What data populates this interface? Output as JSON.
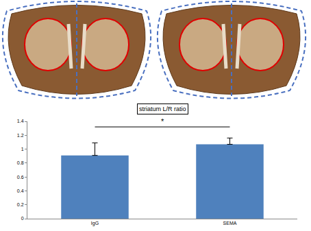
{
  "chart_data": {
    "type": "bar",
    "title": "striatum L/R ratio",
    "categories": [
      "IgG",
      "SEMA"
    ],
    "values": [
      0.91,
      1.07
    ],
    "error": [
      0.18,
      0.09
    ],
    "color": "#4f81bd",
    "ylim": [
      0,
      1.4
    ],
    "yticks": [
      0,
      0.2,
      0.4,
      0.6,
      0.8,
      1,
      1.2,
      1.4
    ],
    "grid": false,
    "significance": {
      "text": "*",
      "between": [
        "IgG",
        "SEMA"
      ],
      "y": 1.32
    }
  }
}
